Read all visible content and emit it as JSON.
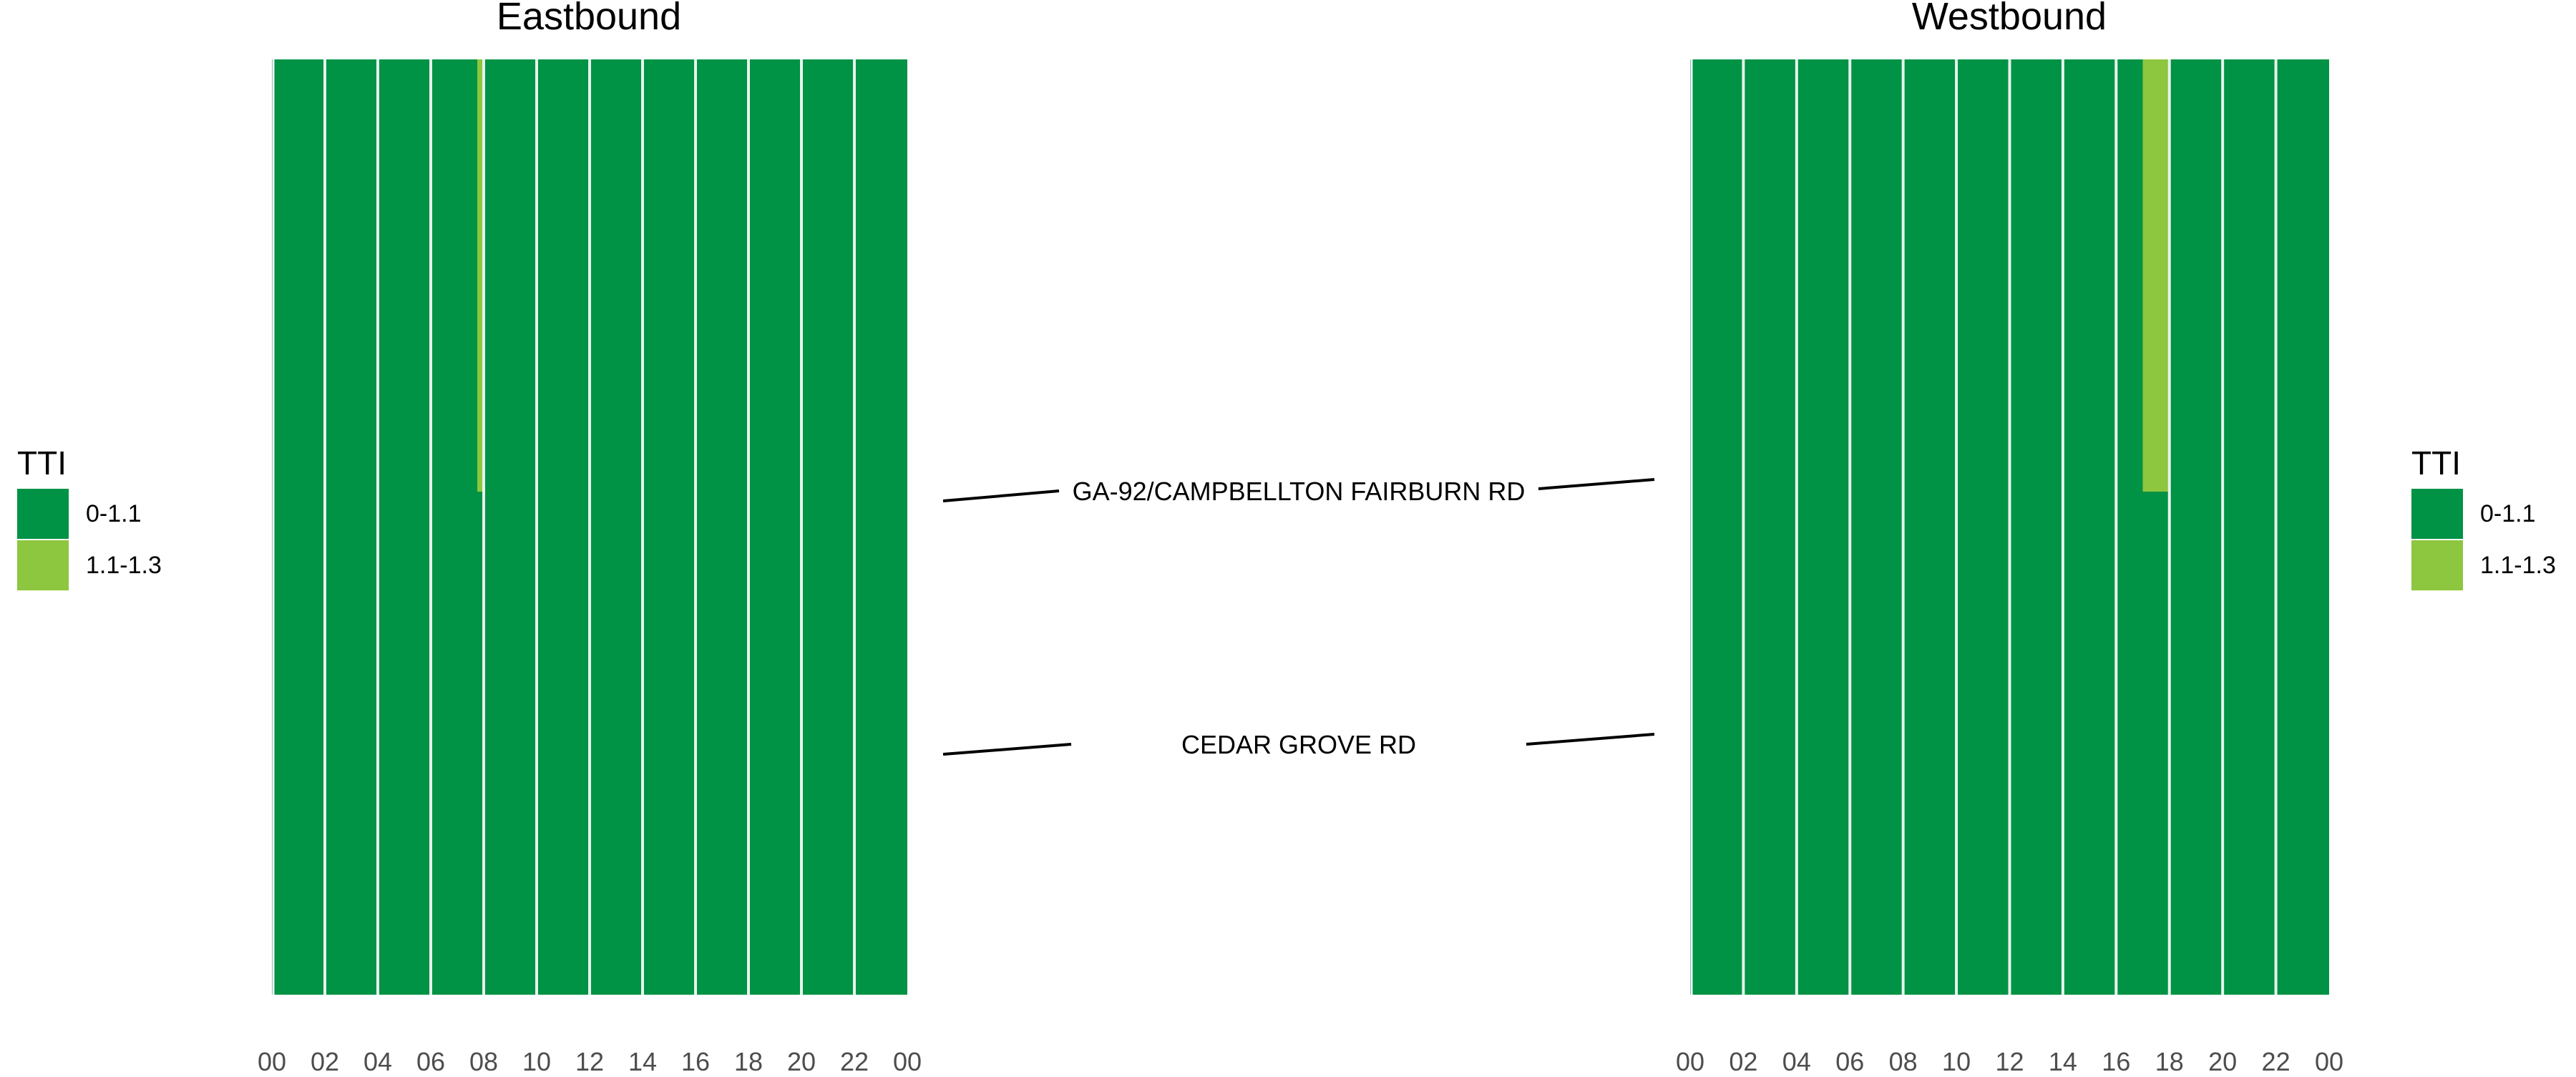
{
  "chart_data": {
    "type": "heatmap",
    "legend": {
      "title": "TTI",
      "placement": "right",
      "entries": [
        {
          "label": "0-1.1",
          "color": "#009245"
        },
        {
          "label": "1.1-1.3",
          "color": "#8dc63f"
        }
      ]
    },
    "x_tick_labels": [
      "00",
      "02",
      "04",
      "06",
      "08",
      "10",
      "12",
      "14",
      "16",
      "18",
      "20",
      "22",
      "00"
    ],
    "xlim_hours": [
      0,
      24
    ],
    "road_labels": [
      "GA-92/CAMPBELLTON FAIRBURN RD",
      "CEDAR GROVE RD"
    ],
    "grid": false,
    "panels": [
      {
        "title": "Eastbound",
        "segments": [
          {
            "name": "GA-92/CAMPBELLTON FAIRBURN RD",
            "value_range": "0-1.1",
            "exceptions": [
              {
                "hour_start": 7.75,
                "hour_end": 8.0,
                "value_range": "1.1-1.3"
              }
            ]
          },
          {
            "name": "CEDAR GROVE RD",
            "value_range": "0-1.1",
            "exceptions": []
          }
        ]
      },
      {
        "title": "Westbound",
        "segments": [
          {
            "name": "GA-92/CAMPBELLTON FAIRBURN RD",
            "value_range": "0-1.1",
            "exceptions": [
              {
                "hour_start": 17.0,
                "hour_end": 18.0,
                "value_range": "1.1-1.3"
              }
            ]
          },
          {
            "name": "CEDAR GROVE RD",
            "value_range": "0-1.1",
            "exceptions": []
          }
        ]
      }
    ]
  }
}
